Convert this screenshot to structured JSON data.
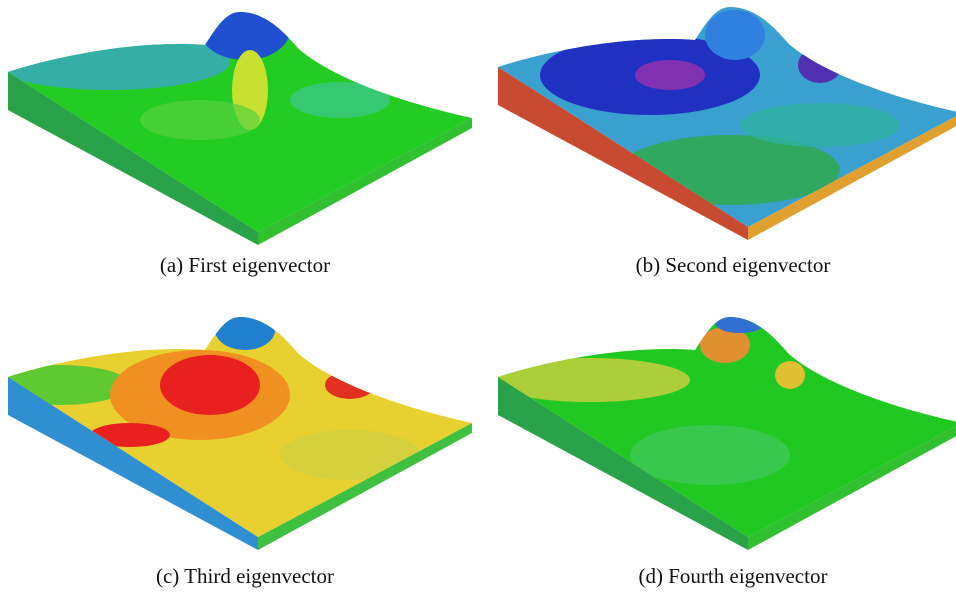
{
  "panels": [
    {
      "caption": "(a) First eigenvector"
    },
    {
      "caption": "(b) Second eigenvector"
    },
    {
      "caption": "(c) Third eigenvector"
    },
    {
      "caption": "(d) Fourth eigenvector"
    }
  ]
}
